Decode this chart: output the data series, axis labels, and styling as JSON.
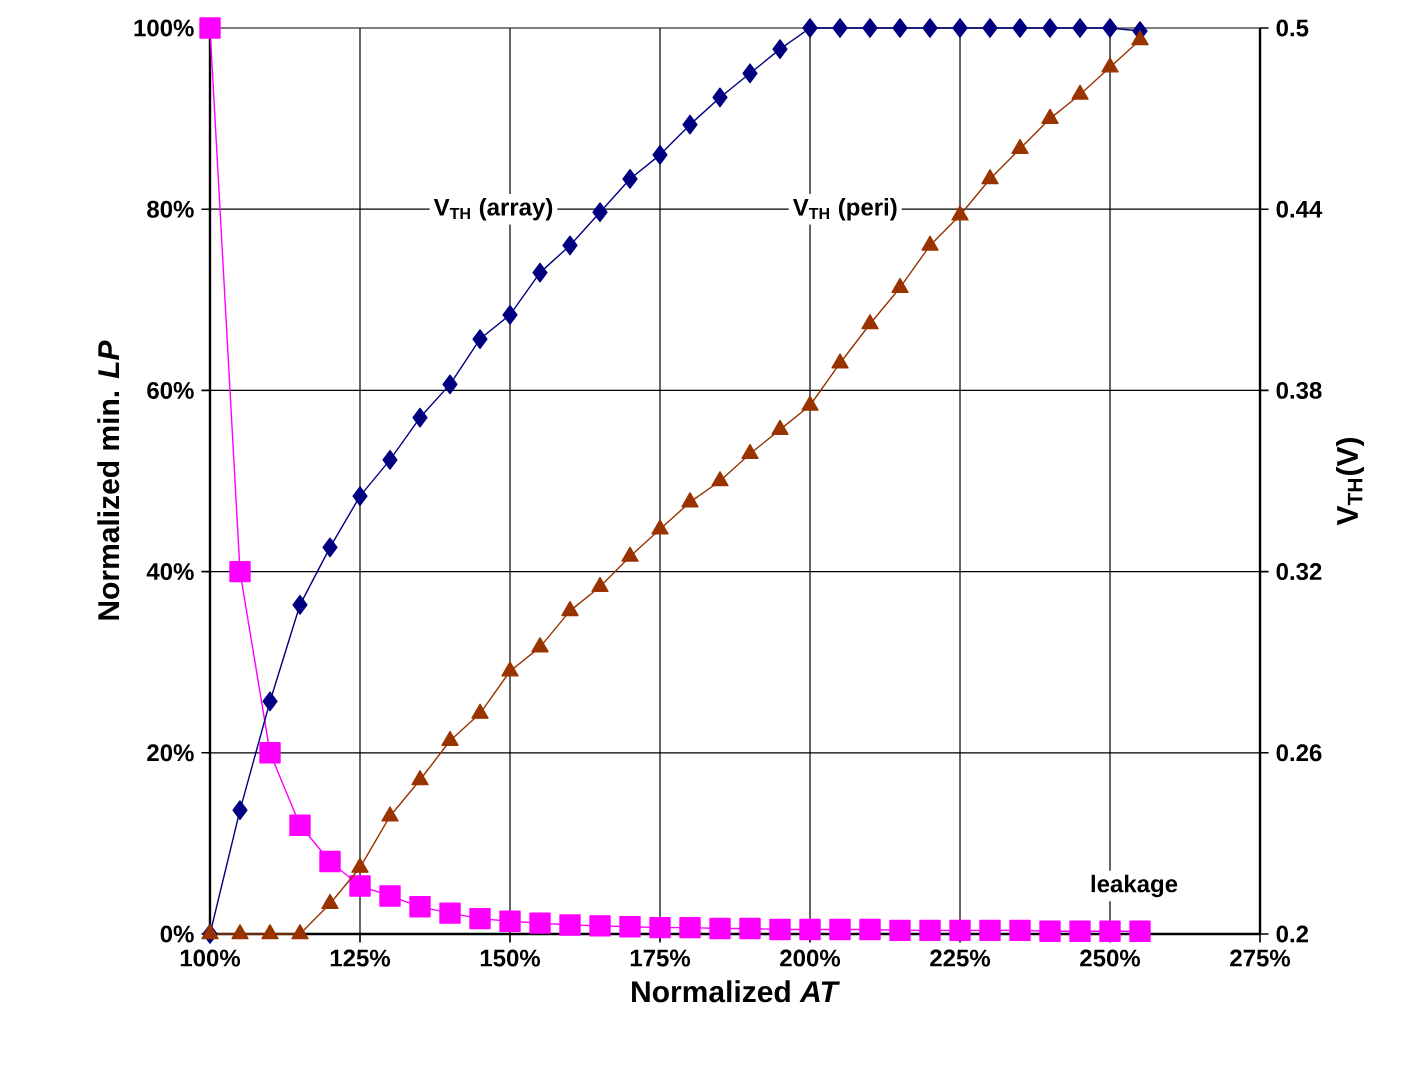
{
  "chart_data": {
    "type": "line",
    "xlabel": "Normalized *AT*",
    "ylabel": "Normalized min. *LP*",
    "y2label": "V$_{TH}$(V)",
    "x": [
      100,
      105,
      110,
      115,
      120,
      125,
      130,
      135,
      140,
      145,
      150,
      155,
      160,
      165,
      170,
      175,
      180,
      185,
      190,
      195,
      200,
      205,
      210,
      215,
      220,
      225,
      230,
      235,
      240,
      245,
      250,
      255
    ],
    "series": [
      {
        "color": "#ff00ff",
        "marker": "square",
        "axis": "y",
        "values": [
          100,
          40,
          20,
          12,
          8,
          5.3,
          4.2,
          3,
          2.3,
          1.7,
          1.4,
          1.2,
          1.0,
          0.9,
          0.8,
          0.7,
          0.7,
          0.6,
          0.6,
          0.5,
          0.5,
          0.5,
          0.5,
          0.4,
          0.4,
          0.4,
          0.4,
          0.4,
          0.3,
          0.3,
          0.3,
          0.3
        ]
      },
      {
        "color": "#000080",
        "marker": "diamond",
        "axis": "y2",
        "values": [
          0.2,
          0.241,
          0.277,
          0.309,
          0.328,
          0.345,
          0.357,
          0.371,
          0.382,
          0.397,
          0.405,
          0.419,
          0.428,
          0.439,
          0.45,
          0.458,
          0.468,
          0.477,
          0.485,
          0.493,
          0.5,
          0.5,
          0.5,
          0.5,
          0.5,
          0.5,
          0.5,
          0.5,
          0.5,
          0.5,
          0.5,
          0.499
        ]
      },
      {
        "color": "#993300",
        "marker": "triangle",
        "axis": "y2",
        "values": [
          0.2,
          0.2,
          0.2,
          0.2,
          0.21,
          0.222,
          0.239,
          0.251,
          0.264,
          0.273,
          0.287,
          0.295,
          0.307,
          0.315,
          0.325,
          0.334,
          0.343,
          0.35,
          0.359,
          0.367,
          0.375,
          0.389,
          0.402,
          0.414,
          0.428,
          0.438,
          0.45,
          0.46,
          0.47,
          0.478,
          0.487,
          0.496
        ]
      }
    ],
    "annotations": [
      "V$_{TH}$ (array)",
      "V$_{TH}$ (peri)",
      "leakage"
    ],
    "xlim": [
      100,
      275
    ],
    "xticks": [
      {
        "value": 100,
        "label": "100%"
      },
      {
        "value": 125,
        "label": "125%"
      },
      {
        "value": 150,
        "label": "150%"
      },
      {
        "value": 175,
        "label": "175%"
      },
      {
        "value": 200,
        "label": "200%"
      },
      {
        "value": 225,
        "label": "225%"
      },
      {
        "value": 250,
        "label": "250%"
      },
      {
        "value": 275,
        "label": "275%"
      }
    ],
    "ylim": [
      0,
      100
    ],
    "yticks": [
      {
        "value": 0,
        "label": "0%"
      },
      {
        "value": 20,
        "label": "20%"
      },
      {
        "value": 40,
        "label": "40%"
      },
      {
        "value": 60,
        "label": "60%"
      },
      {
        "value": 80,
        "label": "80%"
      },
      {
        "value": 100,
        "label": "100%"
      }
    ],
    "y2lim": [
      0.2,
      0.5
    ],
    "y2ticks": [
      0.2,
      0.26,
      0.32,
      0.38,
      0.44,
      0.5
    ],
    "grid": true,
    "line_style": "solid"
  }
}
